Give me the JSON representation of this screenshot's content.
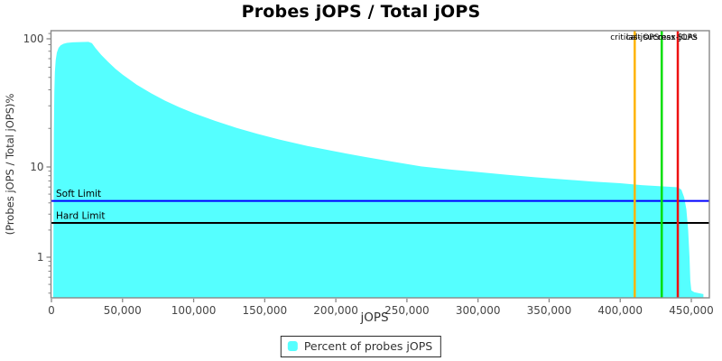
{
  "chart_data": {
    "type": "area",
    "title": "Probes jOPS / Total jOPS",
    "xlabel": "jOPS",
    "ylabel": "(Probes jOPS / Total jOPS)%",
    "x_axis": {
      "min": 0,
      "max": 462000,
      "ticks": [
        {
          "v": 0,
          "label": "0"
        },
        {
          "v": 50000,
          "label": "50,000"
        },
        {
          "v": 100000,
          "label": "100,000"
        },
        {
          "v": 150000,
          "label": "150,000"
        },
        {
          "v": 200000,
          "label": "200,000"
        },
        {
          "v": 250000,
          "label": "250,000"
        },
        {
          "v": 300000,
          "label": "300,000"
        },
        {
          "v": 350000,
          "label": "350,000"
        },
        {
          "v": 400000,
          "label": "400,000"
        },
        {
          "v": 450000,
          "label": "450,000"
        }
      ]
    },
    "y_axis": {
      "scale": "log",
      "min": 0.35,
      "max": 115,
      "ticks": [
        {
          "v": 1,
          "label": "1"
        },
        {
          "v": 10,
          "label": "10"
        },
        {
          "v": 100,
          "label": "100"
        }
      ],
      "minor_ticks": [
        0.4,
        0.5,
        0.6,
        0.7,
        0.8,
        0.9,
        2,
        3,
        4,
        5,
        6,
        7,
        8,
        9,
        20,
        30,
        40,
        50,
        60,
        70,
        80,
        90,
        110
      ]
    },
    "series": [
      {
        "name": "Percent of probes jOPS",
        "color": "#55FFFF",
        "points": [
          [
            1300,
            0.36
          ],
          [
            1500,
            5
          ],
          [
            1700,
            18
          ],
          [
            2000,
            38
          ],
          [
            2400,
            55
          ],
          [
            3000,
            68
          ],
          [
            3800,
            78
          ],
          [
            5000,
            85
          ],
          [
            6500,
            89
          ],
          [
            8500,
            91.5
          ],
          [
            11000,
            93
          ],
          [
            15000,
            93.8
          ],
          [
            20000,
            94.3
          ],
          [
            26000,
            94.6
          ],
          [
            28500,
            92.3
          ],
          [
            31000,
            84.8
          ],
          [
            35000,
            75.1
          ],
          [
            40000,
            65.8
          ],
          [
            45000,
            58.4
          ],
          [
            50000,
            52.6
          ],
          [
            60000,
            43.8
          ],
          [
            70000,
            37.6
          ],
          [
            80000,
            32.9
          ],
          [
            90000,
            29.2
          ],
          [
            100000,
            26.3
          ],
          [
            115000,
            22.9
          ],
          [
            130000,
            20.2
          ],
          [
            145000,
            18.1
          ],
          [
            160000,
            16.4
          ],
          [
            180000,
            14.6
          ],
          [
            200000,
            13.2
          ],
          [
            220000,
            12.0
          ],
          [
            240000,
            11.0
          ],
          [
            260000,
            10.1
          ],
          [
            280000,
            9.4
          ],
          [
            300000,
            8.8
          ],
          [
            320000,
            8.2
          ],
          [
            340000,
            7.7
          ],
          [
            360000,
            7.3
          ],
          [
            380000,
            6.9
          ],
          [
            400000,
            6.6
          ],
          [
            415000,
            6.3
          ],
          [
            430000,
            6.1
          ],
          [
            440500,
            5.95
          ],
          [
            443000,
            5.6
          ],
          [
            445000,
            4.6
          ],
          [
            446500,
            3.4
          ],
          [
            447800,
            2.0
          ],
          [
            448700,
            1.0
          ],
          [
            449300,
            0.55
          ],
          [
            450000,
            0.43
          ],
          [
            452000,
            0.41
          ],
          [
            455000,
            0.4
          ],
          [
            458500,
            0.39
          ]
        ]
      }
    ],
    "markers": [
      {
        "label": "critical-jOPS",
        "x": 410200,
        "color": "#FFB400"
      },
      {
        "label": "last success SLAs",
        "x": 429200,
        "color": "#00DF00"
      },
      {
        "label": "max-jOPS",
        "x": 440500,
        "color": "#EE1111"
      }
    ],
    "limits": [
      {
        "label": "Soft Limit",
        "value": 4.2,
        "color": "#0000FF"
      },
      {
        "label": "Hard Limit",
        "value": 2.4,
        "color": "#000000"
      }
    ],
    "legend": {
      "label": "Percent of probes jOPS"
    },
    "colors": {
      "border": "#888888",
      "tick_label": "#464646",
      "axis_label": "#333333"
    }
  }
}
